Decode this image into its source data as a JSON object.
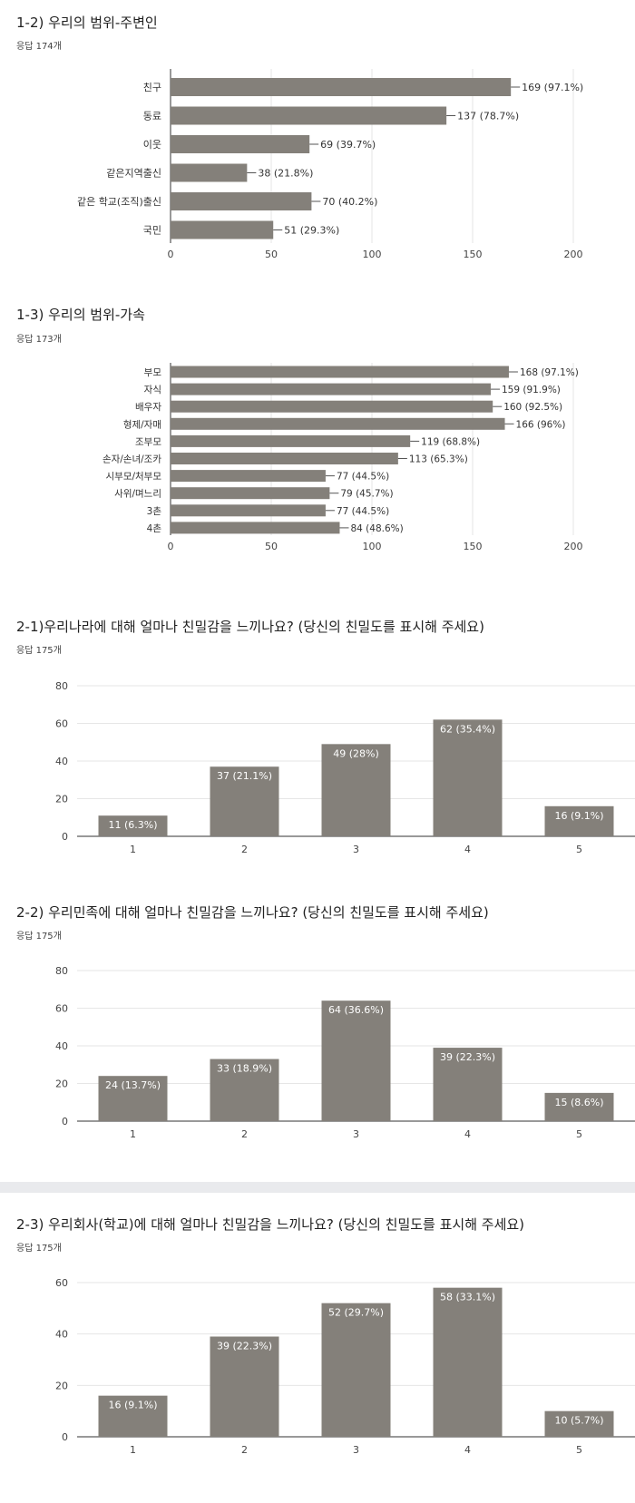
{
  "charts": [
    {
      "title": "1-2) 우리의 범위-주변인",
      "responses": "응답 174개",
      "chart_data": {
        "type": "bar",
        "orientation": "horizontal",
        "categories": [
          "친구",
          "동료",
          "이웃",
          "같은지역출신",
          "같은 학교(조직)출신",
          "국민"
        ],
        "values": [
          169,
          137,
          69,
          38,
          70,
          51
        ],
        "labels": [
          "169 (97.1%)",
          "137 (78.7%)",
          "69 (39.7%)",
          "38 (21.8%)",
          "70 (40.2%)",
          "51 (29.3%)"
        ],
        "ticks": [
          0,
          50,
          100,
          150,
          200
        ],
        "xlim": [
          0,
          200
        ],
        "grid": true,
        "color": "#84807a"
      }
    },
    {
      "title": "1-3) 우리의 범위-가속",
      "responses": "응답 173개",
      "chart_data": {
        "type": "bar",
        "orientation": "horizontal",
        "categories": [
          "부모",
          "자식",
          "배우자",
          "형제/자매",
          "조부모",
          "손자/손녀/조카",
          "시부모/처부모",
          "사위/며느리",
          "3촌",
          "4촌"
        ],
        "values": [
          168,
          159,
          160,
          166,
          119,
          113,
          77,
          79,
          77,
          84
        ],
        "labels": [
          "168 (97.1%)",
          "159 (91.9%)",
          "160 (92.5%)",
          "166 (96%)",
          "119 (68.8%)",
          "113 (65.3%)",
          "77 (44.5%)",
          "79 (45.7%)",
          "77 (44.5%)",
          "84 (48.6%)"
        ],
        "ticks": [
          0,
          50,
          100,
          150,
          200
        ],
        "xlim": [
          0,
          200
        ],
        "grid": true,
        "color": "#84807a"
      }
    },
    {
      "title": "2-1)우리나라에 대해 얼마나 친밀감을 느끼나요? (당신의 친밀도를 표시해 주세요)",
      "responses": "응답 175개",
      "chart_data": {
        "type": "bar",
        "orientation": "vertical",
        "categories": [
          "1",
          "2",
          "3",
          "4",
          "5"
        ],
        "values": [
          11,
          37,
          49,
          62,
          16
        ],
        "labels": [
          "11 (6.3%)",
          "37 (21.1%)",
          "49 (28%)",
          "62 (35.4%)",
          "16 (9.1%)"
        ],
        "ticks": [
          0,
          20,
          40,
          60,
          80
        ],
        "ylim": [
          0,
          80
        ],
        "grid": true,
        "color": "#84807a"
      }
    },
    {
      "title": "2-2) 우리민족에 대해 얼마나 친밀감을 느끼나요? (당신의 친밀도를 표시해 주세요)",
      "responses": "응답 175개",
      "chart_data": {
        "type": "bar",
        "orientation": "vertical",
        "categories": [
          "1",
          "2",
          "3",
          "4",
          "5"
        ],
        "values": [
          24,
          33,
          64,
          39,
          15
        ],
        "labels": [
          "24 (13.7%)",
          "33 (18.9%)",
          "64 (36.6%)",
          "39 (22.3%)",
          "15 (8.6%)"
        ],
        "ticks": [
          0,
          20,
          40,
          60,
          80
        ],
        "ylim": [
          0,
          80
        ],
        "grid": true,
        "color": "#84807a"
      }
    },
    {
      "title": "2-3) 우리회사(학교)에 대해 얼마나 친밀감을 느끼나요? (당신의 친밀도를 표시해 주세요)",
      "responses": "응답 175개",
      "chart_data": {
        "type": "bar",
        "orientation": "vertical",
        "categories": [
          "1",
          "2",
          "3",
          "4",
          "5"
        ],
        "values": [
          16,
          39,
          52,
          58,
          10
        ],
        "labels": [
          "16 (9.1%)",
          "39 (22.3%)",
          "52 (29.7%)",
          "58 (33.1%)",
          "10 (5.7%)"
        ],
        "ticks": [
          0,
          20,
          40,
          60
        ],
        "ylim": [
          0,
          60
        ],
        "grid": true,
        "color": "#84807a"
      }
    }
  ]
}
